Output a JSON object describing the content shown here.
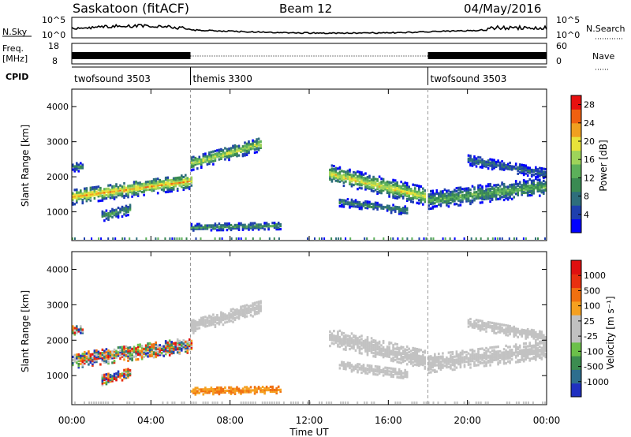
{
  "header": {
    "station": "Saskatoon (fitACF)",
    "beam": "Beam 12",
    "date": "04/May/2016"
  },
  "side_labels": {
    "nsky": "N.Sky",
    "nsearch": "N.Search",
    "freq_top": "Freq.",
    "freq_unit": "[MHz]",
    "nave": "Nave",
    "cpid": "CPID"
  },
  "noise_axis": {
    "left_top": "10^5",
    "left_bottom": "10^0",
    "right_top": "10^5",
    "right_bottom": "10^0"
  },
  "freq_axis": {
    "left_top": "18",
    "left_bottom": "8",
    "right_top": "60",
    "right_bottom": "0"
  },
  "cpid_segments": [
    {
      "label": "twofsound 3503",
      "start_hour": 0
    },
    {
      "label": "themis 3300",
      "start_hour": 6
    },
    {
      "label": "twofsound 3503",
      "start_hour": 18
    }
  ],
  "colors": {
    "power_scale": [
      "#0000ff",
      "#1e3fae",
      "#2e6e7c",
      "#3a8a52",
      "#5cb05a",
      "#9ed35a",
      "#e8e33a",
      "#f0a020",
      "#f06010",
      "#e81010"
    ],
    "velocity_scale": [
      "#2030c0",
      "#2e6e8e",
      "#3c8c50",
      "#6cc04a",
      "#c0c0c0",
      "#c0c0c0",
      "#f5a020",
      "#f07010",
      "#e83010",
      "#e01010"
    ],
    "ground_scatter": "#c2c2c2"
  },
  "chart_data": {
    "type": "heatmap",
    "x_label": "Time UT",
    "x_ticks": [
      "00:00",
      "04:00",
      "08:00",
      "12:00",
      "16:00",
      "20:00",
      "00:00"
    ],
    "x_range_hours": [
      0,
      24
    ],
    "y_label": "Slant Range [km]",
    "y_ticks": [
      1000,
      2000,
      3000,
      4000
    ],
    "y_range_km": [
      180,
      4500
    ],
    "power": {
      "colorbar_label": "Power [dB]",
      "colorbar_ticks": [
        4,
        8,
        12,
        16,
        20,
        24,
        28
      ],
      "range_db": [
        0,
        30
      ]
    },
    "velocity": {
      "colorbar_label": "Velocity [m s⁻¹]",
      "colorbar_ticks": [
        "1000",
        "500",
        "100",
        "25",
        "-25",
        "-100",
        "-500",
        "-1000"
      ]
    },
    "echo_regions": [
      {
        "t0": 0.0,
        "t1": 6.0,
        "r_center0": 1450,
        "r_center1": 1900,
        "width": 450,
        "peak_db": 22,
        "gs": false
      },
      {
        "t0": 6.0,
        "t1": 9.5,
        "r_center0": 2400,
        "r_center1": 2950,
        "width": 400,
        "peak_db": 18,
        "gs": true
      },
      {
        "t0": 0.0,
        "t1": 0.6,
        "r_center0": 2300,
        "r_center1": 2300,
        "width": 250,
        "peak_db": 10,
        "gs": false
      },
      {
        "t0": 1.5,
        "t1": 3.0,
        "r_center0": 900,
        "r_center1": 1100,
        "width": 300,
        "peak_db": 12,
        "gs": false
      },
      {
        "t0": 6.0,
        "t1": 10.5,
        "r_center0": 580,
        "r_center1": 620,
        "width": 200,
        "peak_db": 12,
        "gs": false
      },
      {
        "t0": 13.0,
        "t1": 17.9,
        "r_center0": 2100,
        "r_center1": 1450,
        "width": 500,
        "peak_db": 20,
        "gs": true
      },
      {
        "t0": 13.5,
        "t1": 17.0,
        "r_center0": 1300,
        "r_center1": 1050,
        "width": 250,
        "peak_db": 10,
        "gs": true
      },
      {
        "t0": 18.0,
        "t1": 24.0,
        "r_center0": 1350,
        "r_center1": 1750,
        "width": 500,
        "peak_db": 14,
        "gs": true
      },
      {
        "t0": 20.0,
        "t1": 24.0,
        "r_center0": 2500,
        "r_center1": 2100,
        "width": 300,
        "peak_db": 8,
        "gs": true
      }
    ],
    "cpid_change_hours": [
      6,
      18
    ]
  }
}
